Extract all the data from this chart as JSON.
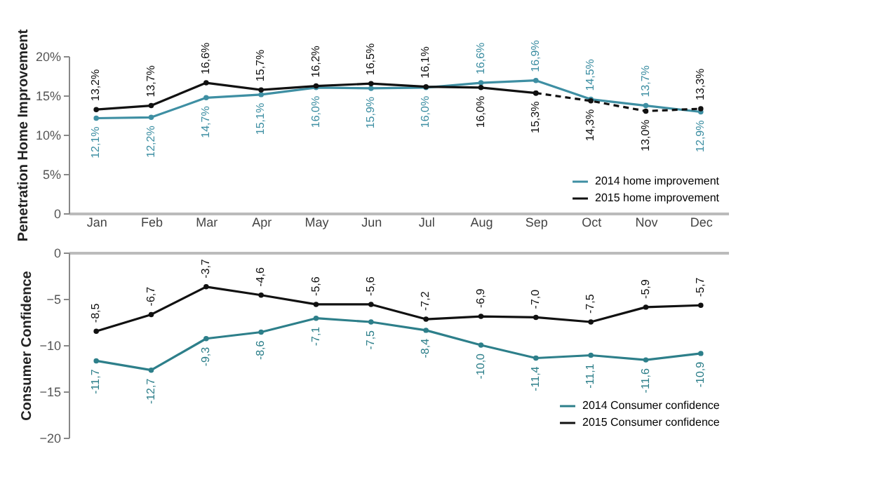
{
  "chart_data": [
    {
      "type": "line",
      "ylabel": "Penetration Home Improvement",
      "categories": [
        "Jan",
        "Feb",
        "Mar",
        "Apr",
        "May",
        "Jun",
        "Jul",
        "Aug",
        "Sep",
        "Oct",
        "Nov",
        "Dec"
      ],
      "ylim": [
        0,
        20
      ],
      "yticks": [
        {
          "value": 0,
          "label": "0"
        },
        {
          "value": 5,
          "label": "5%"
        },
        {
          "value": 10,
          "label": "10%"
        },
        {
          "value": 15,
          "label": "15%"
        },
        {
          "value": 20,
          "label": "20%"
        }
      ],
      "grid": false,
      "legend": "bottom right",
      "marker": "circle",
      "series": [
        {
          "name": "2014 home improvement",
          "color": "#3e8fa3",
          "line_style": "solid",
          "values": [
            12.1,
            12.2,
            14.7,
            15.1,
            16.0,
            15.9,
            16.0,
            16.6,
            16.9,
            14.5,
            13.7,
            12.9
          ],
          "value_labels": [
            "12,1%",
            "12,2%",
            "14,7%",
            "15,1%",
            "16,0%",
            "15,9%",
            "16,0%",
            "16,6%",
            "16,9%",
            "14,5%",
            "13,7%",
            "12,9%"
          ]
        },
        {
          "name": "2015 home improvement",
          "color": "#111111",
          "line_style": "solid",
          "values": [
            13.2,
            13.7,
            16.6,
            15.7,
            16.2,
            16.5,
            16.1,
            16.0,
            15.3,
            null,
            null,
            null
          ],
          "value_labels": [
            "13,2%",
            "13,7%",
            "16,6%",
            "15,7%",
            "16,2%",
            "16,5%",
            "16,1%",
            "16,0%",
            "15,3%",
            null,
            null,
            null
          ]
        },
        {
          "color": "#111111",
          "line_style": "dashed",
          "values": [
            null,
            null,
            null,
            null,
            null,
            null,
            null,
            null,
            15.3,
            14.3,
            13.0,
            13.3
          ],
          "value_labels": [
            null,
            null,
            null,
            null,
            null,
            null,
            null,
            null,
            null,
            "14,3%",
            "13,0%",
            "13,3%"
          ]
        }
      ]
    },
    {
      "type": "line",
      "ylabel": "Consumer Confidence",
      "categories": [
        null,
        null,
        null,
        null,
        null,
        null,
        null,
        null,
        null,
        null,
        null,
        null
      ],
      "tick_labels": "y",
      "ylim": [
        -20,
        0
      ],
      "yticks": [
        -20,
        -15,
        -10,
        -5,
        0
      ],
      "grid": false,
      "legend": "bottom right",
      "marker": "circle",
      "series": [
        {
          "name": "2014 Consumer confidence",
          "color": "#2d7f8a",
          "line_style": "solid",
          "values": [
            -11.7,
            -12.7,
            -9.3,
            -8.6,
            -7.1,
            -7.5,
            -8.4,
            -10.0,
            -11.4,
            -11.1,
            -11.6,
            -10.9
          ],
          "value_labels": [
            "-11,7",
            "-12,7",
            "-9,3",
            "-8,6",
            "-7,1",
            "-7,5",
            "-8,4",
            "-10,0",
            "-11,4",
            "-11,1",
            "-11,6",
            "-10,9"
          ]
        },
        {
          "name": "2015 Consumer confidence",
          "color": "#111111",
          "line_style": "solid",
          "values": [
            -8.5,
            -6.7,
            -3.7,
            -4.6,
            -5.6,
            -5.6,
            -7.2,
            -6.9,
            -7.0,
            -7.5,
            -5.9,
            -5.7
          ],
          "value_labels": [
            "-8,5",
            "-6,7",
            "-3,7",
            "-4,6",
            "-5,6",
            "-5,6",
            "-7,2",
            "-6,9",
            "-7,0",
            "-7,5",
            "-5,9",
            "-5,7"
          ]
        }
      ]
    }
  ]
}
